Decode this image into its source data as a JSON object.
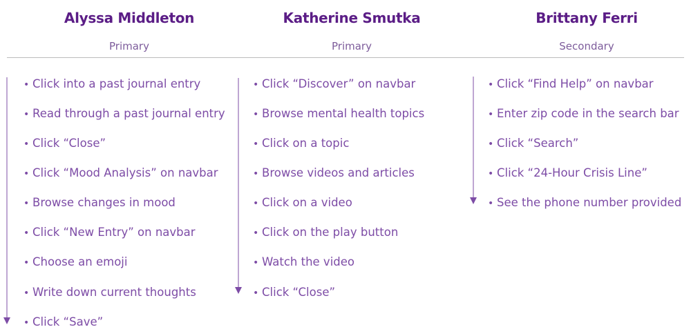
{
  "colors": {
    "name": "#5b1d86",
    "role": "#7d5c9b",
    "step_text": "#7d4ca6",
    "arrow": "#7d4ca6",
    "divider": "#bcbcbc"
  },
  "bullet_glyph": "•",
  "personas": [
    {
      "name": "Alyssa Middleton",
      "role": "Primary",
      "steps": [
        "Click into a past journal entry",
        "Read through a past journal entry",
        "Click “Close”",
        "Click “Mood Analysis” on navbar",
        "Browse changes in mood",
        "Click “New Entry” on navbar",
        "Choose an emoji",
        "Write down current thoughts",
        "Click “Save”"
      ]
    },
    {
      "name": "Katherine Smutka",
      "role": "Primary",
      "steps": [
        "Click “Discover” on navbar",
        "Browse mental health topics",
        "Click on a topic",
        "Browse videos and articles",
        "Click on a video",
        "Click on the play button",
        "Watch the video",
        "Click “Close”"
      ]
    },
    {
      "name": "Brittany Ferri",
      "role": "Secondary",
      "steps": [
        "Click “Find Help” on navbar",
        "Enter zip code in the search bar",
        "Click “Search”",
        "Click “24-Hour Crisis Line”",
        "See the phone number provided"
      ]
    }
  ]
}
